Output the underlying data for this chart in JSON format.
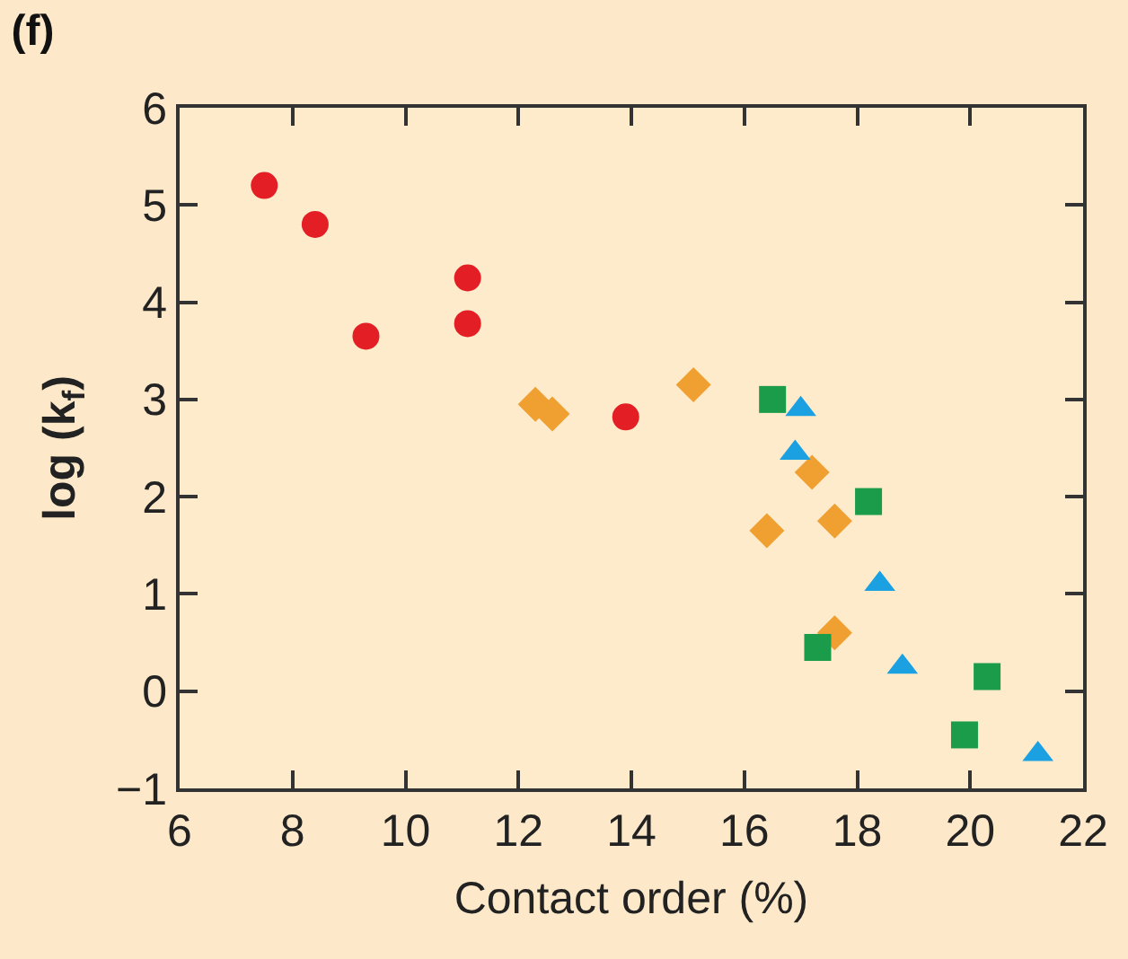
{
  "chart_data": {
    "type": "scatter",
    "title": "(f)",
    "xlabel": "Contact order (%)",
    "ylabel": "log (k$_{f}$)",
    "xlim": [
      6,
      22
    ],
    "xticks": [
      6,
      8,
      10,
      12,
      14,
      16,
      18,
      20,
      22
    ],
    "ylim": [
      -1,
      6
    ],
    "yticks": [
      -1,
      0,
      1,
      2,
      3,
      4,
      5,
      6
    ],
    "grid": false,
    "series": [
      {
        "color": "#e31e24",
        "marker": "circle",
        "x": [
          7.5,
          8.4,
          9.3,
          11.1,
          11.1,
          13.9
        ],
        "values": [
          5.2,
          4.8,
          3.65,
          4.25,
          3.78,
          2.82
        ]
      },
      {
        "color": "#f0a030",
        "marker": "diamond",
        "x": [
          12.3,
          12.6,
          15.1,
          16.4,
          17.2,
          17.6,
          17.6
        ],
        "values": [
          2.95,
          2.85,
          3.15,
          1.65,
          2.25,
          1.75,
          0.6
        ]
      },
      {
        "color": "#1a9c4a",
        "marker": "square",
        "x": [
          16.5,
          18.2,
          17.3,
          20.3,
          19.9
        ],
        "values": [
          3.0,
          1.95,
          0.45,
          0.15,
          -0.45
        ]
      },
      {
        "color": "#1ba1e2",
        "marker": "triangle",
        "x": [
          17.0,
          16.9,
          18.4,
          18.8,
          21.2
        ],
        "values": [
          2.9,
          2.45,
          1.1,
          0.25,
          -0.65
        ]
      }
    ]
  }
}
